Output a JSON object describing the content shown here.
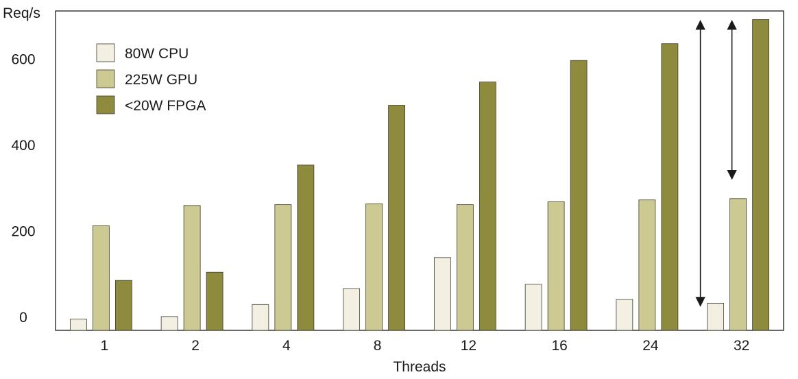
{
  "chart_data": {
    "type": "bar",
    "xlabel": "Threads",
    "ylabel": "Req/s",
    "categories": [
      "1",
      "2",
      "4",
      "8",
      "12",
      "16",
      "24",
      "32"
    ],
    "yticks": [
      0,
      200,
      400,
      600
    ],
    "ylim": [
      -30,
      712
    ],
    "grid": false,
    "legend_position": "top-left",
    "series": [
      {
        "name": "80W CPU",
        "color": "#f3efe2",
        "values": [
          -4,
          2,
          30,
          67,
          139,
          77,
          42,
          33
        ]
      },
      {
        "name": "225W GPU",
        "color": "#cdc993",
        "values": [
          213,
          260,
          262,
          264,
          262,
          269,
          273,
          276
        ]
      },
      {
        "name": "<20W FPGA",
        "color": "#8e8a3e",
        "values": [
          86,
          105,
          354,
          493,
          547,
          597,
          636,
          692
        ]
      }
    ],
    "annotations": [
      {
        "type": "double-arrow",
        "category": "32",
        "from": 27,
        "to": 689
      },
      {
        "type": "double-arrow",
        "category": "32",
        "from": 322,
        "to": 689
      }
    ]
  }
}
